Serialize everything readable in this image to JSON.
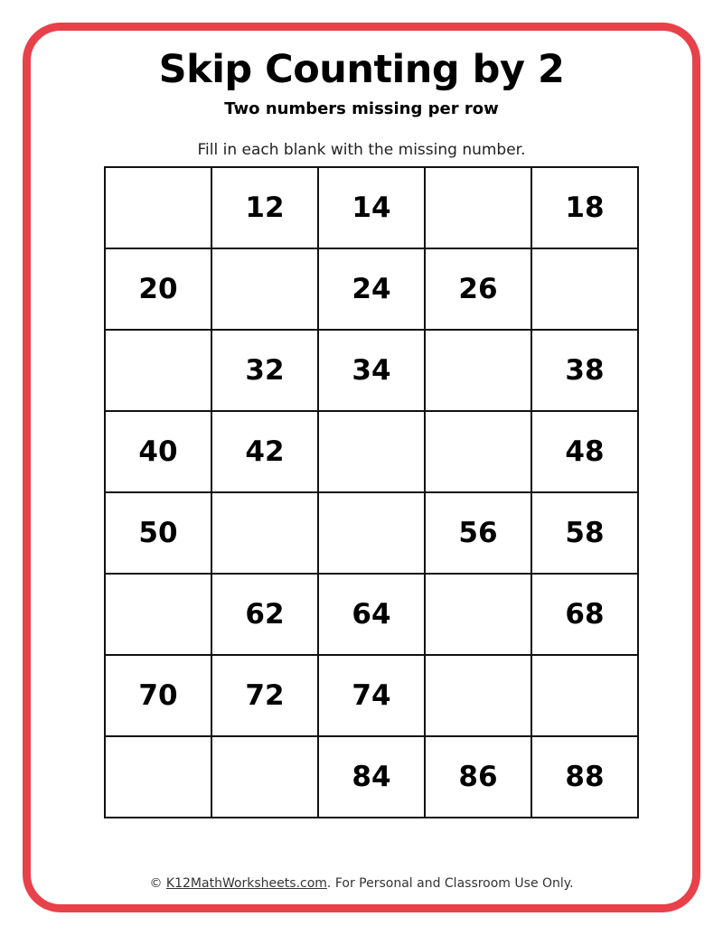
{
  "title": "Skip Counting by 2",
  "subtitle": "Two numbers missing per row",
  "instruction": "Fill in each blank with the missing number.",
  "border_color": "#e8414a",
  "grid": [
    [
      "",
      "12",
      "14",
      "",
      "18"
    ],
    [
      "20",
      "",
      "24",
      "26",
      ""
    ],
    [
      "",
      "32",
      "34",
      "",
      "38"
    ],
    [
      "40",
      "42",
      "",
      "",
      "48"
    ],
    [
      "50",
      "",
      "",
      "56",
      "58"
    ],
    [
      "",
      "62",
      "64",
      "",
      "68"
    ],
    [
      "70",
      "72",
      "74",
      "",
      ""
    ],
    [
      "",
      "",
      "84",
      "86",
      "88"
    ]
  ],
  "footer": {
    "copyright": "©",
    "link": "K12MathWorksheets.com",
    "text": ". For Personal and Classroom Use Only."
  }
}
